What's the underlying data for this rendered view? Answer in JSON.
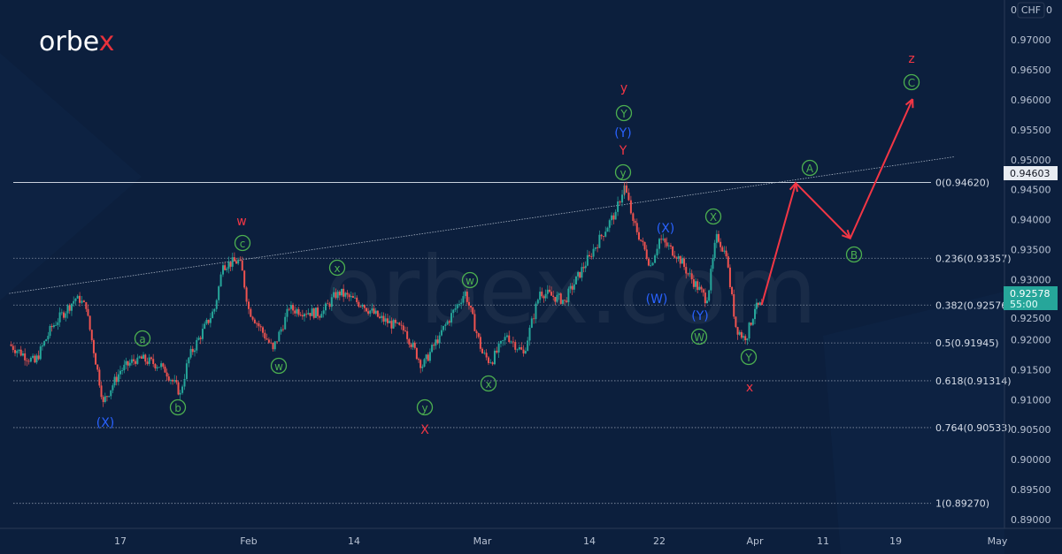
{
  "brand": {
    "logo_text": "orbe",
    "logo_accent": "x",
    "watermark": "orbex.com"
  },
  "chart_data": {
    "type": "candlestick",
    "title": "",
    "currency": "CHF",
    "currency_badge": "0 CHF 0",
    "ylim": [
      0.8885,
      0.9738
    ],
    "y_ticks": [
      "0.97000",
      "0.96500",
      "0.96000",
      "0.95500",
      "0.95000",
      "0.94500",
      "0.94000",
      "0.93500",
      "0.93000",
      "0.92500",
      "0.92000",
      "0.91500",
      "0.91000",
      "0.90500",
      "0.90000",
      "0.89500",
      "0.89000"
    ],
    "x_ticks": [
      {
        "label": "17",
        "date": "01-17"
      },
      {
        "label": "Feb",
        "date": "02-01"
      },
      {
        "label": "14",
        "date": "02-14"
      },
      {
        "label": "Mar",
        "date": "03-01"
      },
      {
        "label": "14",
        "date": "03-14"
      },
      {
        "label": "22",
        "date": "03-22"
      },
      {
        "label": "Apr",
        "date": "04-01"
      },
      {
        "label": "11",
        "date": "04-11"
      },
      {
        "label": "19",
        "date": "04-19"
      },
      {
        "label": "May",
        "date": "05-01"
      }
    ],
    "price_swings": [
      [
        "01-04",
        0.9192
      ],
      [
        "01-07",
        0.9162
      ],
      [
        "01-09",
        0.9221
      ],
      [
        "01-12",
        0.9273
      ],
      [
        "01-13",
        0.9251
      ],
      [
        "01-15",
        0.9096
      ],
      [
        "01-17",
        0.9148
      ],
      [
        "01-19",
        0.917
      ],
      [
        "01-22",
        0.9155
      ],
      [
        "01-24",
        0.9111
      ],
      [
        "01-25",
        0.917
      ],
      [
        "01-28",
        0.9251
      ],
      [
        "01-29",
        0.9324
      ],
      [
        "01-31",
        0.9332
      ],
      [
        "02-01",
        0.9251
      ],
      [
        "02-04",
        0.9184
      ],
      [
        "02-06",
        0.9251
      ],
      [
        "02-10",
        0.9243
      ],
      [
        "02-12",
        0.928
      ],
      [
        "02-15",
        0.9258
      ],
      [
        "02-17",
        0.9236
      ],
      [
        "02-20",
        0.9214
      ],
      [
        "02-22",
        0.9155
      ],
      [
        "02-24",
        0.9207
      ],
      [
        "02-27",
        0.928
      ],
      [
        "03-01",
        0.9177
      ],
      [
        "03-02",
        0.9162
      ],
      [
        "03-04",
        0.9207
      ],
      [
        "03-06",
        0.9177
      ],
      [
        "03-08",
        0.928
      ],
      [
        "03-11",
        0.9265
      ],
      [
        "03-14",
        0.9339
      ],
      [
        "03-17",
        0.9413
      ],
      [
        "03-18",
        0.9457
      ],
      [
        "03-19",
        0.9398
      ],
      [
        "03-21",
        0.9324
      ],
      [
        "03-22",
        0.9368
      ],
      [
        "03-24",
        0.9339
      ],
      [
        "03-25",
        0.931
      ],
      [
        "03-27",
        0.9265
      ],
      [
        "03-28",
        0.9376
      ],
      [
        "03-29",
        0.9339
      ],
      [
        "03-30",
        0.9221
      ],
      [
        "03-31",
        0.9199
      ],
      [
        "04-01",
        0.9251
      ],
      [
        "04-02",
        0.9258
      ]
    ],
    "forecast_path": [
      [
        "04-02",
        0.9258
      ],
      [
        "04-07",
        0.9461
      ],
      [
        "04-14",
        0.9369
      ],
      [
        "04-21",
        0.9601
      ]
    ],
    "fib_levels": [
      {
        "label": "0(0.94620)",
        "price": 0.9462
      },
      {
        "label": "0.236(0.93357)",
        "price": 0.93357
      },
      {
        "label": "0.382(0.92576)",
        "price": 0.92576
      },
      {
        "label": "0.5(0.91945)",
        "price": 0.91945
      },
      {
        "label": "0.618(0.91314)",
        "price": 0.91314
      },
      {
        "label": "0.764(0.90533)",
        "price": 0.90533
      },
      {
        "label": "1(0.89270)",
        "price": 0.8927
      }
    ],
    "trendline": [
      [
        "01-04",
        0.9277
      ],
      [
        "04-26",
        0.9505
      ]
    ],
    "high_marker": "0.94603",
    "last_price": "0.92578",
    "countdown": "55:00",
    "wave_labels": [
      {
        "text": "w",
        "color": "red",
        "circled": false
      },
      {
        "text": "c",
        "color": "green",
        "circled": true
      },
      {
        "text": "(X)",
        "color": "blue",
        "circled": false
      },
      {
        "text": "a",
        "color": "green",
        "circled": true
      },
      {
        "text": "b",
        "color": "green",
        "circled": true
      },
      {
        "text": "w",
        "color": "green",
        "circled": true
      },
      {
        "text": "x",
        "color": "green",
        "circled": true
      },
      {
        "text": "y",
        "color": "green",
        "circled": true
      },
      {
        "text": "X",
        "color": "red",
        "circled": false
      },
      {
        "text": "w",
        "color": "green",
        "circled": true
      },
      {
        "text": "x",
        "color": "green",
        "circled": true
      },
      {
        "text": "y",
        "color": "red",
        "circled": false
      },
      {
        "text": "Y",
        "color": "green",
        "circled": true
      },
      {
        "text": "(Y)",
        "color": "blue",
        "circled": false
      },
      {
        "text": "Y",
        "color": "red",
        "circled": false
      },
      {
        "text": "y",
        "color": "green",
        "circled": true
      },
      {
        "text": "(X)",
        "color": "blue",
        "circled": false
      },
      {
        "text": "X",
        "color": "green",
        "circled": true
      },
      {
        "text": "(W)",
        "color": "blue",
        "circled": false
      },
      {
        "text": "(Y)",
        "color": "blue",
        "circled": false
      },
      {
        "text": "W",
        "color": "green",
        "circled": true
      },
      {
        "text": "Y",
        "color": "green",
        "circled": true
      },
      {
        "text": "x",
        "color": "red",
        "circled": false
      },
      {
        "text": "A",
        "color": "green",
        "circled": true
      },
      {
        "text": "B",
        "color": "green",
        "circled": true
      },
      {
        "text": "z",
        "color": "red",
        "circled": false
      },
      {
        "text": "C",
        "color": "green",
        "circled": true
      }
    ],
    "colors": {
      "background": "#0c1f3d",
      "up": "#26a69a",
      "down": "#ef5350",
      "forecast": "#f23645",
      "red": "#f23645",
      "green": "#4caf50",
      "blue": "#2962ff",
      "last_price_bg": "#26a69a"
    }
  }
}
